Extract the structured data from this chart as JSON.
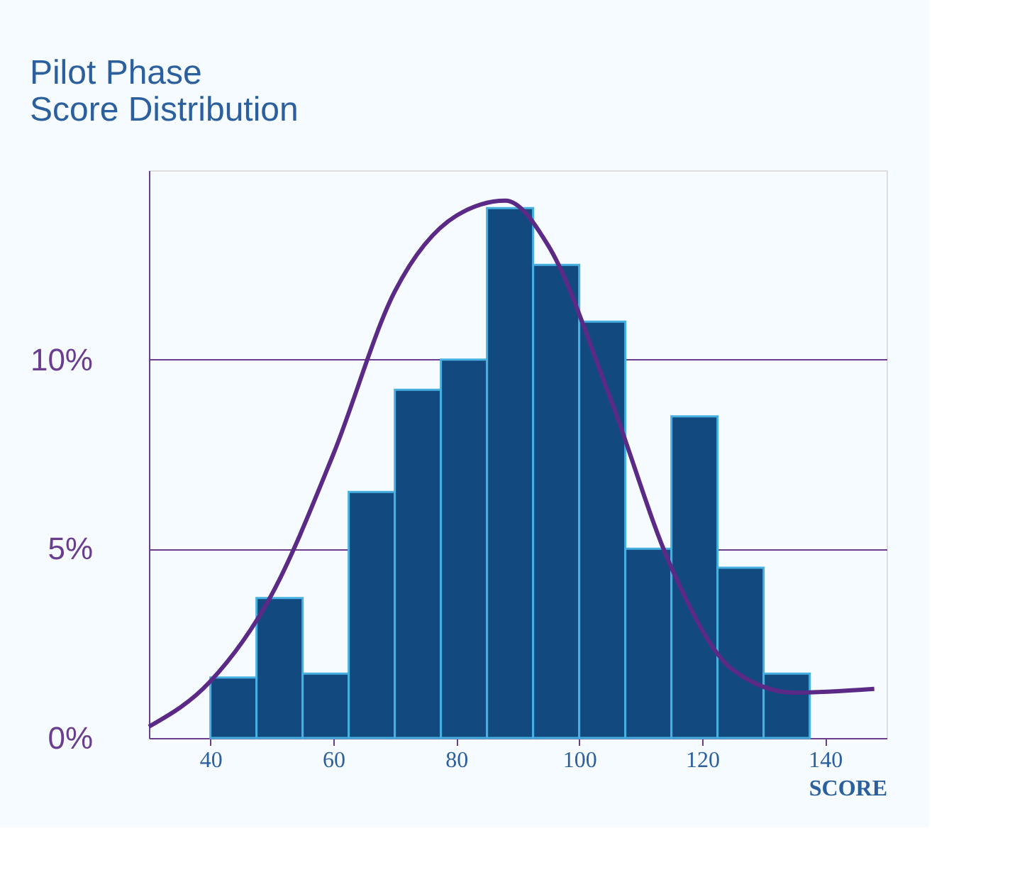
{
  "chart_data": {
    "type": "histogram",
    "title": "Pilot Phase\nScore Distribution",
    "xlabel": "SCORE",
    "bins": [
      40,
      47.5,
      55,
      62.5,
      70,
      77.5,
      85,
      92.5,
      100,
      107.5,
      115,
      122.5,
      130,
      137.5
    ],
    "values": [
      1.6,
      3.7,
      1.7,
      6.5,
      9.2,
      10,
      14,
      12.5,
      11,
      5,
      8.5,
      4.5,
      1.7
    ],
    "color": "#124a80",
    "series": [
      {
        "type": "line",
        "color": "#5b2a86",
        "x": [
          30,
          40,
          50,
          60,
          70,
          80,
          88,
          95,
          105,
          115,
          125,
          135,
          148
        ],
        "values": [
          0.3,
          1.5,
          3.8,
          7.5,
          11.8,
          13.8,
          14.2,
          13,
          9,
          4.5,
          1.8,
          1.2,
          1.3
        ]
      }
    ],
    "xlim": [
      30,
      150
    ],
    "xticks": [
      40,
      60,
      80,
      100,
      120,
      140
    ],
    "ylim": [
      0,
      15
    ],
    "yticks": [
      {
        "value": 0,
        "label": "0%"
      },
      {
        "value": 5,
        "label": "5%"
      },
      {
        "value": 10,
        "label": "10%"
      }
    ],
    "grid": "y",
    "line_style": "solid",
    "marker": "none"
  }
}
